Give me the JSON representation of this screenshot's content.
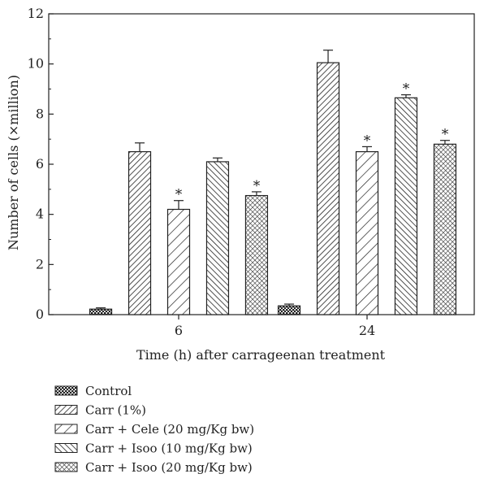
{
  "chart_data": {
    "type": "bar",
    "xlabel": "Time (h) after carrageenan treatment",
    "ylabel": "Number of cells (×million)",
    "ylim": [
      0,
      12
    ],
    "yticks": [
      "0",
      "2",
      "4",
      "6",
      "8",
      "10",
      "12"
    ],
    "categories": [
      "6",
      "24"
    ],
    "grid": false,
    "legend_position": "bottom-left",
    "series": [
      {
        "name": "Control",
        "pattern": "dots",
        "values": [
          0.22,
          0.35
        ],
        "errors": [
          0.05,
          0.07
        ],
        "significant": [
          false,
          false
        ]
      },
      {
        "name": "Carr (1%)",
        "pattern": "diagonal-dense",
        "values": [
          6.5,
          10.05
        ],
        "errors": [
          0.35,
          0.5
        ],
        "significant": [
          false,
          false
        ]
      },
      {
        "name": "Carr + Cele (20 mg/Kg bw)",
        "pattern": "diagonal-sparse",
        "values": [
          4.2,
          6.5
        ],
        "errors": [
          0.35,
          0.2
        ],
        "significant": [
          true,
          true
        ]
      },
      {
        "name": "Carr + Isoo (10 mg/Kg bw)",
        "pattern": "backslash",
        "values": [
          6.1,
          8.65
        ],
        "errors": [
          0.15,
          0.12
        ],
        "significant": [
          false,
          true
        ]
      },
      {
        "name": "Carr + Isoo (20 mg/Kg bw)",
        "pattern": "crosshatch",
        "values": [
          4.75,
          6.8
        ],
        "errors": [
          0.15,
          0.15
        ],
        "significant": [
          true,
          true
        ]
      }
    ],
    "significance_marker": "*"
  }
}
